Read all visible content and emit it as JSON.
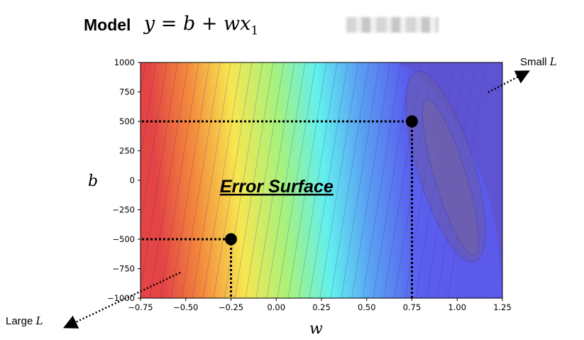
{
  "header": {
    "model_label": "Model",
    "equation": "y = b + wx",
    "equation_subscript": "1"
  },
  "chart_data": {
    "type": "heatmap",
    "title": "",
    "xlabel": "w",
    "ylabel": "b",
    "xlim": [
      -0.75,
      1.25
    ],
    "ylim": [
      -1000,
      1000
    ],
    "xticks": [
      "−0.75",
      "−0.50",
      "−0.25",
      "0.00",
      "0.25",
      "0.50",
      "0.75",
      "1.00",
      "1.25"
    ],
    "yticks": [
      "1000",
      "750",
      "500",
      "250",
      "0",
      "−250",
      "−500",
      "−750",
      "−1000"
    ],
    "colormap": "jet",
    "annotation": "Error Surface",
    "points": [
      {
        "w": 0.75,
        "b": 500
      },
      {
        "w": -0.25,
        "b": -500
      }
    ],
    "minimum": {
      "w": 1.0,
      "b": 0
    }
  },
  "labels": {
    "small_L": "Small",
    "large_L": "Large",
    "L_symbol": "L"
  }
}
